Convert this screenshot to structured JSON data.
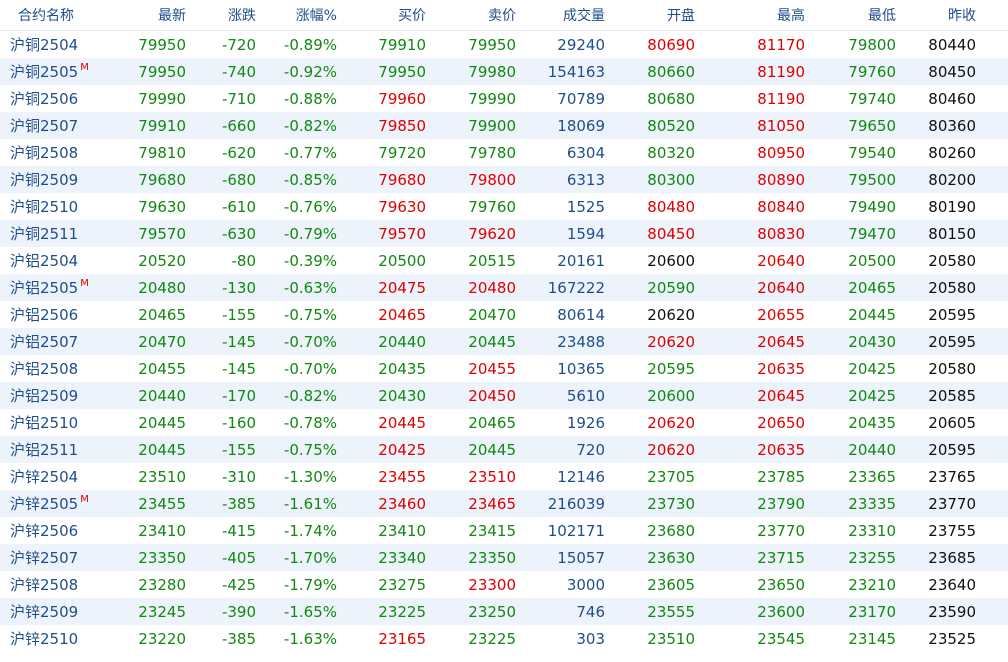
{
  "header": [
    "合约名称",
    "最新",
    "涨跌",
    "涨幅%",
    "买价",
    "卖价",
    "成交量",
    "开盘",
    "最高",
    "最低",
    "昨收"
  ],
  "colors": {
    "up": "#e00000",
    "down": "#118811",
    "neutral": "#111111",
    "volume": "#1f4e8c"
  },
  "rows": [
    {
      "name": "沪铜2504",
      "m": "",
      "v": [
        "79950",
        "-720",
        "-0.89%",
        "79910",
        "79950",
        "29240",
        "80690",
        "81170",
        "79800",
        "80440"
      ],
      "c": [
        "g",
        "g",
        "g",
        "g",
        "g",
        "b",
        "r",
        "r",
        "g",
        "k"
      ]
    },
    {
      "name": "沪铜2505",
      "m": "M",
      "v": [
        "79950",
        "-740",
        "-0.92%",
        "79950",
        "79980",
        "154163",
        "80660",
        "81190",
        "79760",
        "80450"
      ],
      "c": [
        "g",
        "g",
        "g",
        "g",
        "g",
        "b",
        "g",
        "r",
        "g",
        "k"
      ]
    },
    {
      "name": "沪铜2506",
      "m": "",
      "v": [
        "79990",
        "-710",
        "-0.88%",
        "79960",
        "79990",
        "70789",
        "80680",
        "81190",
        "79740",
        "80460"
      ],
      "c": [
        "g",
        "g",
        "g",
        "r",
        "g",
        "b",
        "g",
        "r",
        "g",
        "k"
      ]
    },
    {
      "name": "沪铜2507",
      "m": "",
      "v": [
        "79910",
        "-660",
        "-0.82%",
        "79850",
        "79900",
        "18069",
        "80520",
        "81050",
        "79650",
        "80360"
      ],
      "c": [
        "g",
        "g",
        "g",
        "r",
        "g",
        "b",
        "g",
        "r",
        "g",
        "k"
      ]
    },
    {
      "name": "沪铜2508",
      "m": "",
      "v": [
        "79810",
        "-620",
        "-0.77%",
        "79720",
        "79780",
        "6304",
        "80320",
        "80950",
        "79540",
        "80260"
      ],
      "c": [
        "g",
        "g",
        "g",
        "g",
        "g",
        "b",
        "g",
        "r",
        "g",
        "k"
      ]
    },
    {
      "name": "沪铜2509",
      "m": "",
      "v": [
        "79680",
        "-680",
        "-0.85%",
        "79680",
        "79800",
        "6313",
        "80300",
        "80890",
        "79500",
        "80200"
      ],
      "c": [
        "g",
        "g",
        "g",
        "r",
        "r",
        "b",
        "g",
        "r",
        "g",
        "k"
      ]
    },
    {
      "name": "沪铜2510",
      "m": "",
      "v": [
        "79630",
        "-610",
        "-0.76%",
        "79630",
        "79760",
        "1525",
        "80480",
        "80840",
        "79490",
        "80190"
      ],
      "c": [
        "g",
        "g",
        "g",
        "r",
        "g",
        "b",
        "r",
        "r",
        "g",
        "k"
      ]
    },
    {
      "name": "沪铜2511",
      "m": "",
      "v": [
        "79570",
        "-630",
        "-0.79%",
        "79570",
        "79620",
        "1594",
        "80450",
        "80830",
        "79470",
        "80150"
      ],
      "c": [
        "g",
        "g",
        "g",
        "r",
        "r",
        "b",
        "r",
        "r",
        "g",
        "k"
      ]
    },
    {
      "name": "沪铝2504",
      "m": "",
      "v": [
        "20520",
        "-80",
        "-0.39%",
        "20500",
        "20515",
        "20161",
        "20600",
        "20640",
        "20500",
        "20580"
      ],
      "c": [
        "g",
        "g",
        "g",
        "g",
        "g",
        "b",
        "k",
        "r",
        "g",
        "k"
      ]
    },
    {
      "name": "沪铝2505",
      "m": "M",
      "v": [
        "20480",
        "-130",
        "-0.63%",
        "20475",
        "20480",
        "167222",
        "20590",
        "20640",
        "20465",
        "20580"
      ],
      "c": [
        "g",
        "g",
        "g",
        "r",
        "r",
        "b",
        "g",
        "r",
        "g",
        "k"
      ]
    },
    {
      "name": "沪铝2506",
      "m": "",
      "v": [
        "20465",
        "-155",
        "-0.75%",
        "20465",
        "20470",
        "80614",
        "20620",
        "20655",
        "20445",
        "20595"
      ],
      "c": [
        "g",
        "g",
        "g",
        "r",
        "g",
        "b",
        "k",
        "r",
        "g",
        "k"
      ]
    },
    {
      "name": "沪铝2507",
      "m": "",
      "v": [
        "20470",
        "-145",
        "-0.70%",
        "20440",
        "20445",
        "23488",
        "20620",
        "20645",
        "20430",
        "20595"
      ],
      "c": [
        "g",
        "g",
        "g",
        "g",
        "g",
        "b",
        "r",
        "r",
        "g",
        "k"
      ]
    },
    {
      "name": "沪铝2508",
      "m": "",
      "v": [
        "20455",
        "-145",
        "-0.70%",
        "20435",
        "20455",
        "10365",
        "20595",
        "20635",
        "20425",
        "20580"
      ],
      "c": [
        "g",
        "g",
        "g",
        "g",
        "r",
        "b",
        "g",
        "r",
        "g",
        "k"
      ]
    },
    {
      "name": "沪铝2509",
      "m": "",
      "v": [
        "20440",
        "-170",
        "-0.82%",
        "20430",
        "20450",
        "5610",
        "20600",
        "20645",
        "20425",
        "20585"
      ],
      "c": [
        "g",
        "g",
        "g",
        "g",
        "r",
        "b",
        "g",
        "r",
        "g",
        "k"
      ]
    },
    {
      "name": "沪铝2510",
      "m": "",
      "v": [
        "20445",
        "-160",
        "-0.78%",
        "20445",
        "20465",
        "1926",
        "20620",
        "20650",
        "20435",
        "20605"
      ],
      "c": [
        "g",
        "g",
        "g",
        "r",
        "g",
        "b",
        "r",
        "r",
        "g",
        "k"
      ]
    },
    {
      "name": "沪铝2511",
      "m": "",
      "v": [
        "20445",
        "-155",
        "-0.75%",
        "20425",
        "20445",
        "720",
        "20620",
        "20635",
        "20440",
        "20595"
      ],
      "c": [
        "g",
        "g",
        "g",
        "r",
        "g",
        "b",
        "r",
        "r",
        "g",
        "k"
      ]
    },
    {
      "name": "沪锌2504",
      "m": "",
      "v": [
        "23510",
        "-310",
        "-1.30%",
        "23455",
        "23510",
        "12146",
        "23705",
        "23785",
        "23365",
        "23765"
      ],
      "c": [
        "g",
        "g",
        "g",
        "r",
        "r",
        "b",
        "g",
        "g",
        "g",
        "k"
      ]
    },
    {
      "name": "沪锌2505",
      "m": "M",
      "v": [
        "23455",
        "-385",
        "-1.61%",
        "23460",
        "23465",
        "216039",
        "23730",
        "23790",
        "23335",
        "23770"
      ],
      "c": [
        "g",
        "g",
        "g",
        "r",
        "r",
        "b",
        "g",
        "g",
        "g",
        "k"
      ]
    },
    {
      "name": "沪锌2506",
      "m": "",
      "v": [
        "23410",
        "-415",
        "-1.74%",
        "23410",
        "23415",
        "102171",
        "23680",
        "23770",
        "23310",
        "23755"
      ],
      "c": [
        "g",
        "g",
        "g",
        "g",
        "g",
        "b",
        "g",
        "g",
        "g",
        "k"
      ]
    },
    {
      "name": "沪锌2507",
      "m": "",
      "v": [
        "23350",
        "-405",
        "-1.70%",
        "23340",
        "23350",
        "15057",
        "23630",
        "23715",
        "23255",
        "23685"
      ],
      "c": [
        "g",
        "g",
        "g",
        "g",
        "g",
        "b",
        "g",
        "g",
        "g",
        "k"
      ]
    },
    {
      "name": "沪锌2508",
      "m": "",
      "v": [
        "23280",
        "-425",
        "-1.79%",
        "23275",
        "23300",
        "3000",
        "23605",
        "23650",
        "23210",
        "23640"
      ],
      "c": [
        "g",
        "g",
        "g",
        "g",
        "r",
        "b",
        "g",
        "g",
        "g",
        "k"
      ]
    },
    {
      "name": "沪锌2509",
      "m": "",
      "v": [
        "23245",
        "-390",
        "-1.65%",
        "23225",
        "23250",
        "746",
        "23555",
        "23600",
        "23170",
        "23590"
      ],
      "c": [
        "g",
        "g",
        "g",
        "g",
        "g",
        "b",
        "g",
        "g",
        "g",
        "k"
      ]
    },
    {
      "name": "沪锌2510",
      "m": "",
      "v": [
        "23220",
        "-385",
        "-1.63%",
        "23165",
        "23225",
        "303",
        "23510",
        "23545",
        "23145",
        "23525"
      ],
      "c": [
        "g",
        "g",
        "g",
        "r",
        "g",
        "b",
        "g",
        "g",
        "g",
        "k"
      ]
    }
  ]
}
